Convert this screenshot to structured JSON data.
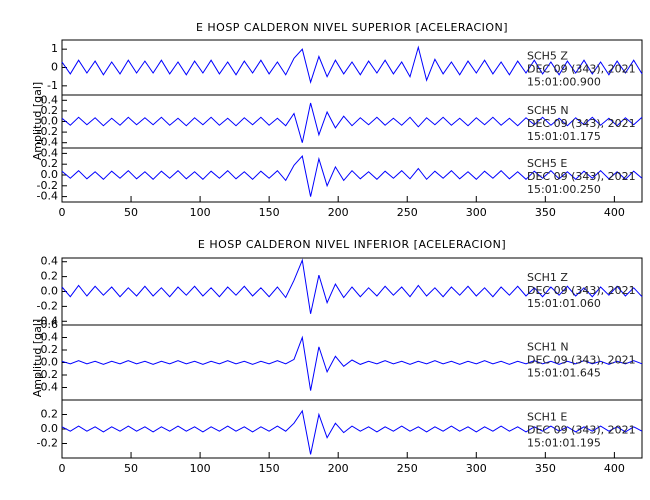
{
  "chart_data": [
    {
      "type": "line",
      "title": "E HOSP CALDERON NIVEL SUPERIOR [ACELERACION]",
      "y_label": "Amplitud [gal]",
      "color": "#0000ff",
      "xlim": [
        0,
        420
      ],
      "xticks": [
        0,
        50,
        100,
        150,
        200,
        250,
        300,
        350,
        400
      ],
      "x": [
        0,
        6,
        12,
        18,
        24,
        30,
        36,
        42,
        48,
        54,
        60,
        66,
        72,
        78,
        84,
        90,
        96,
        102,
        108,
        114,
        120,
        126,
        132,
        138,
        144,
        150,
        156,
        162,
        168,
        174,
        180,
        186,
        192,
        198,
        204,
        210,
        216,
        222,
        228,
        234,
        240,
        246,
        252,
        258,
        264,
        270,
        276,
        282,
        288,
        294,
        300,
        306,
        312,
        318,
        324,
        330,
        336,
        342,
        348,
        354,
        360,
        366,
        372,
        378,
        384,
        390,
        396,
        402,
        408,
        414,
        420
      ],
      "panels": [
        {
          "station": "SCH5   Z",
          "date": "DEC 09 (343), 2021",
          "time": "15:01:00.900",
          "ylim": [
            -1.5,
            1.5
          ],
          "yticks": [
            -1,
            0,
            1
          ],
          "values": [
            0.3,
            -0.35,
            0.4,
            -0.3,
            0.35,
            -0.4,
            0.3,
            -0.35,
            0.4,
            -0.3,
            0.35,
            -0.3,
            0.4,
            -0.35,
            0.3,
            -0.4,
            0.35,
            -0.3,
            0.4,
            -0.35,
            0.3,
            -0.4,
            0.35,
            -0.3,
            0.4,
            -0.35,
            0.3,
            -0.4,
            0.5,
            1.0,
            -0.8,
            0.6,
            -0.5,
            0.4,
            -0.35,
            0.3,
            -0.4,
            0.35,
            -0.3,
            0.4,
            -0.35,
            0.3,
            -0.5,
            1.1,
            -0.7,
            0.45,
            -0.35,
            0.3,
            -0.4,
            0.35,
            -0.3,
            0.4,
            -0.35,
            0.3,
            -0.4,
            0.35,
            -0.3,
            0.4,
            -0.35,
            0.3,
            -0.4,
            0.35,
            -0.3,
            0.4,
            -0.35,
            0.3,
            -0.4,
            0.35,
            -0.3,
            0.4,
            -0.35
          ]
        },
        {
          "station": "SCH5   N",
          "date": "DEC 09 (343), 2021",
          "time": "15:01:01.175",
          "ylim": [
            -0.5,
            0.5
          ],
          "yticks": [
            -0.4,
            -0.2,
            {
              "value": 0,
              "label": "0.0"
            },
            0.2,
            0.4
          ],
          "values": [
            0.06,
            -0.07,
            0.08,
            -0.06,
            0.07,
            -0.08,
            0.06,
            -0.07,
            0.08,
            -0.06,
            0.07,
            -0.06,
            0.08,
            -0.07,
            0.06,
            -0.08,
            0.07,
            -0.06,
            0.08,
            -0.07,
            0.06,
            -0.08,
            0.07,
            -0.06,
            0.08,
            -0.07,
            0.06,
            -0.08,
            0.15,
            -0.4,
            0.35,
            -0.25,
            0.18,
            -0.12,
            0.1,
            -0.08,
            0.07,
            -0.06,
            0.08,
            -0.07,
            0.06,
            -0.07,
            0.08,
            -0.1,
            0.07,
            -0.06,
            0.08,
            -0.07,
            0.06,
            -0.08,
            0.07,
            -0.06,
            0.08,
            -0.07,
            0.06,
            -0.08,
            0.07,
            -0.06,
            0.08,
            -0.07,
            0.06,
            -0.08,
            0.07,
            -0.06,
            0.08,
            -0.07,
            0.06,
            -0.08,
            0.07,
            -0.06,
            0.08
          ]
        },
        {
          "station": "SCH5   E",
          "date": "DEC 09 (343), 2021",
          "time": "15:01:00.250",
          "ylim": [
            -0.5,
            0.5
          ],
          "yticks": [
            -0.4,
            -0.2,
            {
              "value": 0,
              "label": "0.0"
            },
            0.2,
            0.4
          ],
          "values": [
            0.07,
            -0.06,
            0.08,
            -0.07,
            0.06,
            -0.08,
            0.07,
            -0.06,
            0.08,
            -0.07,
            0.06,
            -0.08,
            0.07,
            -0.06,
            0.08,
            -0.07,
            0.06,
            -0.08,
            0.07,
            -0.06,
            0.08,
            -0.07,
            0.06,
            -0.08,
            0.07,
            -0.06,
            0.08,
            -0.1,
            0.18,
            0.35,
            -0.4,
            0.3,
            -0.2,
            0.15,
            -0.1,
            0.08,
            -0.07,
            0.06,
            -0.08,
            0.07,
            -0.06,
            0.08,
            -0.07,
            0.12,
            -0.08,
            0.07,
            -0.06,
            0.08,
            -0.07,
            0.06,
            -0.08,
            0.07,
            -0.06,
            0.08,
            -0.07,
            0.06,
            -0.08,
            0.07,
            -0.06,
            0.08,
            -0.07,
            0.06,
            -0.08,
            0.07,
            -0.06,
            0.08,
            -0.07,
            0.06,
            -0.08,
            0.07,
            -0.06
          ]
        }
      ]
    },
    {
      "type": "line",
      "title": "E HOSP CALDERON NIVEL INFERIOR [ACELERACION]",
      "y_label": "Amplitud [gal]",
      "color": "#0000ff",
      "xlim": [
        0,
        420
      ],
      "xticks": [
        0,
        50,
        100,
        150,
        200,
        250,
        300,
        350,
        400
      ],
      "x": [
        0,
        6,
        12,
        18,
        24,
        30,
        36,
        42,
        48,
        54,
        60,
        66,
        72,
        78,
        84,
        90,
        96,
        102,
        108,
        114,
        120,
        126,
        132,
        138,
        144,
        150,
        156,
        162,
        168,
        174,
        180,
        186,
        192,
        198,
        204,
        210,
        216,
        222,
        228,
        234,
        240,
        246,
        252,
        258,
        264,
        270,
        276,
        282,
        288,
        294,
        300,
        306,
        312,
        318,
        324,
        330,
        336,
        342,
        348,
        354,
        360,
        366,
        372,
        378,
        384,
        390,
        396,
        402,
        408,
        414,
        420
      ],
      "panels": [
        {
          "station": "SCH1   Z",
          "date": "DEC 09 (343), 2021",
          "time": "15:01:01.060",
          "ylim": [
            -0.45,
            0.45
          ],
          "yticks": [
            -0.4,
            -0.2,
            {
              "value": 0,
              "label": "0.0"
            },
            0.2,
            0.4
          ],
          "values": [
            0.06,
            -0.07,
            0.08,
            -0.06,
            0.07,
            -0.05,
            0.06,
            -0.07,
            0.05,
            -0.06,
            0.07,
            -0.06,
            0.05,
            -0.07,
            0.06,
            -0.05,
            0.07,
            -0.06,
            0.05,
            -0.07,
            0.06,
            -0.05,
            0.07,
            -0.06,
            0.05,
            -0.07,
            0.06,
            -0.08,
            0.15,
            0.42,
            -0.3,
            0.22,
            -0.15,
            0.1,
            -0.08,
            0.06,
            -0.07,
            0.05,
            -0.06,
            0.07,
            -0.05,
            0.06,
            -0.07,
            0.08,
            -0.06,
            0.05,
            -0.07,
            0.06,
            -0.05,
            0.07,
            -0.06,
            0.05,
            -0.07,
            0.06,
            -0.05,
            0.07,
            -0.06,
            0.05,
            -0.07,
            0.06,
            -0.05,
            0.07,
            -0.06,
            0.05,
            -0.07,
            0.06,
            -0.05,
            0.07,
            -0.06,
            0.05,
            -0.07
          ]
        },
        {
          "station": "SCH1   N",
          "date": "DEC 09 (343), 2021",
          "time": "15:01:01.645",
          "ylim": [
            -0.6,
            0.6
          ],
          "yticks": [
            -0.4,
            -0.2,
            {
              "value": 0,
              "label": "0.0"
            },
            0.2,
            0.4,
            0.6
          ],
          "values": [
            0.02,
            -0.02,
            0.03,
            -0.02,
            0.02,
            -0.03,
            0.02,
            -0.02,
            0.03,
            -0.02,
            0.02,
            -0.03,
            0.02,
            -0.02,
            0.03,
            -0.02,
            0.02,
            -0.03,
            0.02,
            -0.02,
            0.03,
            -0.02,
            0.02,
            -0.03,
            0.02,
            -0.02,
            0.03,
            -0.02,
            0.05,
            0.4,
            -0.45,
            0.25,
            -0.15,
            0.1,
            -0.06,
            0.04,
            -0.03,
            0.02,
            -0.02,
            0.03,
            -0.02,
            0.02,
            -0.03,
            0.02,
            -0.02,
            0.03,
            -0.02,
            0.02,
            -0.03,
            0.02,
            -0.02,
            0.03,
            -0.02,
            0.02,
            -0.03,
            0.02,
            -0.02,
            0.03,
            -0.02,
            0.02,
            -0.03,
            0.02,
            -0.02,
            0.03,
            -0.02,
            0.02,
            -0.03,
            0.02,
            -0.02,
            0.03,
            -0.02
          ]
        },
        {
          "station": "SCH1   E",
          "date": "DEC 09 (343), 2021",
          "time": "15:01:01.195",
          "ylim": [
            -0.4,
            0.4
          ],
          "yticks": [
            -0.2,
            {
              "value": 0,
              "label": "0.0"
            },
            0.2
          ],
          "values": [
            0.03,
            -0.03,
            0.04,
            -0.03,
            0.03,
            -0.04,
            0.03,
            -0.03,
            0.04,
            -0.03,
            0.03,
            -0.04,
            0.03,
            -0.03,
            0.04,
            -0.03,
            0.03,
            -0.04,
            0.03,
            -0.03,
            0.04,
            -0.03,
            0.03,
            -0.04,
            0.03,
            -0.03,
            0.04,
            -0.03,
            0.08,
            0.25,
            -0.35,
            0.2,
            -0.12,
            0.08,
            -0.05,
            0.04,
            -0.03,
            0.03,
            -0.04,
            0.03,
            -0.03,
            0.04,
            -0.03,
            0.03,
            -0.04,
            0.03,
            -0.03,
            0.04,
            -0.03,
            0.03,
            -0.04,
            0.03,
            -0.03,
            0.04,
            -0.03,
            0.03,
            -0.04,
            0.03,
            -0.03,
            0.04,
            -0.03,
            0.03,
            -0.04,
            0.03,
            -0.03,
            0.04,
            -0.03,
            0.03,
            -0.04,
            0.03,
            -0.03
          ]
        }
      ]
    }
  ]
}
